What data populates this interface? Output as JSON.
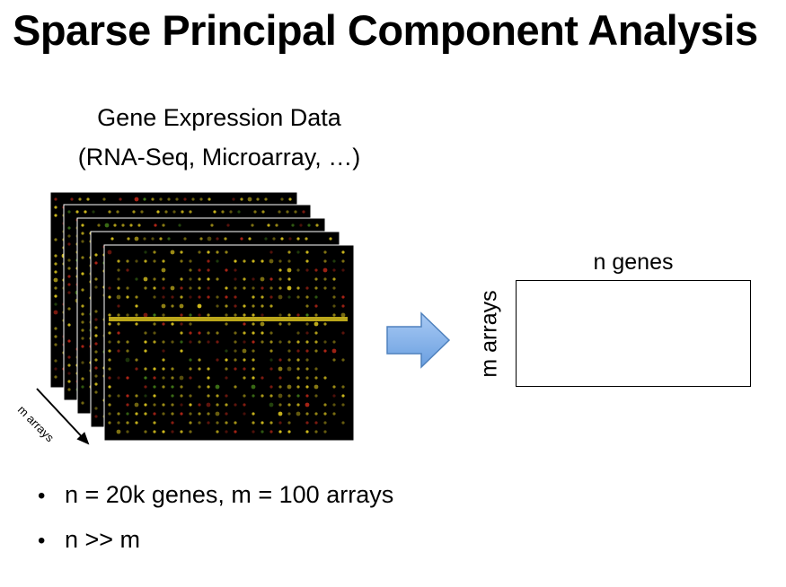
{
  "slide": {
    "title": "Sparse Principal Component Analysis"
  },
  "left_panel": {
    "caption_line1": "Gene Expression Data",
    "caption_line2": "(RNA-Seq, Microarray, …)",
    "stack_axis_label": "m arrays",
    "image_description_icon": "microarray-image-stack"
  },
  "right_panel": {
    "columns_label": "n genes",
    "rows_label": "m arrays"
  },
  "arrow_icon": "right-arrow-icon",
  "bullets": [
    "n = 20k genes, m = 100 arrays",
    "n >> m"
  ],
  "colors": {
    "arrow_fill": "#8db7ec",
    "arrow_stroke": "#4f81bd",
    "microarray_background": "#000000",
    "spot_yellow": "#e8d020",
    "spot_red": "#c02818",
    "spot_green": "#4a8a1a"
  }
}
